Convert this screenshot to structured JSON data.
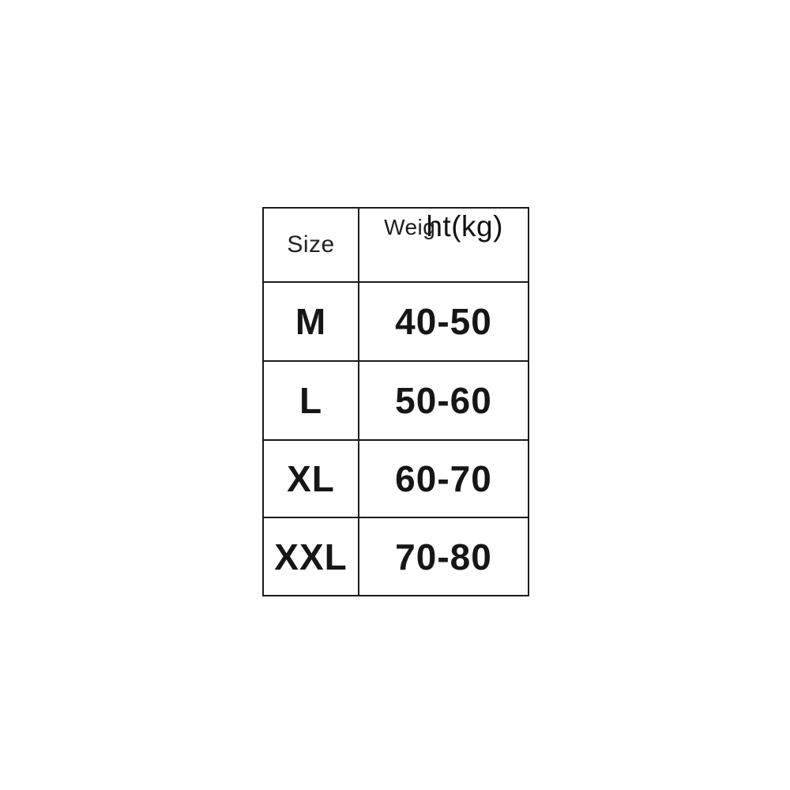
{
  "page": {
    "background_color": "#ffffff"
  },
  "size_chart": {
    "columns": [
      "Size",
      "Weight(kg)"
    ],
    "header": {
      "size_label": "Size",
      "weight_label_part1": "Weig",
      "weight_label_part2": "ht(kg)",
      "weight_label_full": "Weight(kg)"
    },
    "rows": [
      {
        "size": "M",
        "weight": "40-50"
      },
      {
        "size": "L",
        "weight": "50-60"
      },
      {
        "size": "XL",
        "weight": "60-70"
      },
      {
        "size": "XXL",
        "weight": "70-80"
      }
    ],
    "colors": {
      "border": "#1b1b1b",
      "text": "#161616",
      "background": "#ffffff"
    }
  },
  "chart_data": {
    "type": "table",
    "columns": [
      "Size",
      "Weight(kg)"
    ],
    "rows": [
      [
        "M",
        "40-50"
      ],
      [
        "L",
        "50-60"
      ],
      [
        "XL",
        "60-70"
      ],
      [
        "XXL",
        "70-80"
      ]
    ],
    "layout": "2-column bordered grid, header row + 4 data rows, centered text"
  }
}
